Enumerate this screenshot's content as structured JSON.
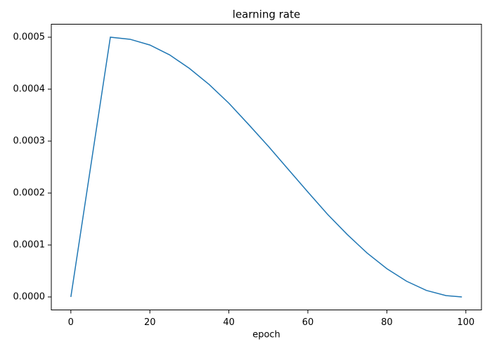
{
  "chart_data": {
    "type": "line",
    "title": "learning rate",
    "x_label": "epoch",
    "x": [
      0,
      10,
      15,
      20,
      25,
      30,
      35,
      40,
      45,
      50,
      55,
      60,
      65,
      70,
      75,
      80,
      85,
      90,
      95,
      99
    ],
    "series": [
      {
        "name": "learning rate",
        "color": "#1f77b4",
        "values": [
          0,
          0.0005,
          0.000496,
          0.000485,
          0.000466,
          0.00044,
          0.000409,
          0.000373,
          0.000332,
          0.00029,
          0.000246,
          0.000202,
          0.000159,
          0.00012,
          8.45e-05,
          5.44e-05,
          3.02e-05,
          1.26e-05,
          2.5e-06,
          0
        ]
      }
    ],
    "xlim": [
      -4.95,
      103.95
    ],
    "ylim": [
      -2.5e-05,
      0.000525
    ],
    "xticks": [
      0,
      20,
      40,
      60,
      80,
      100
    ],
    "yticks": [
      {
        "value": 0,
        "label": "0.0000"
      },
      {
        "value": 0.0001,
        "label": "0.0001"
      },
      {
        "value": 0.0002,
        "label": "0.0002"
      },
      {
        "value": 0.0003,
        "label": "0.0003"
      },
      {
        "value": 0.0004,
        "label": "0.0004"
      },
      {
        "value": 0.0005,
        "label": "0.0005"
      }
    ],
    "grid": false
  }
}
